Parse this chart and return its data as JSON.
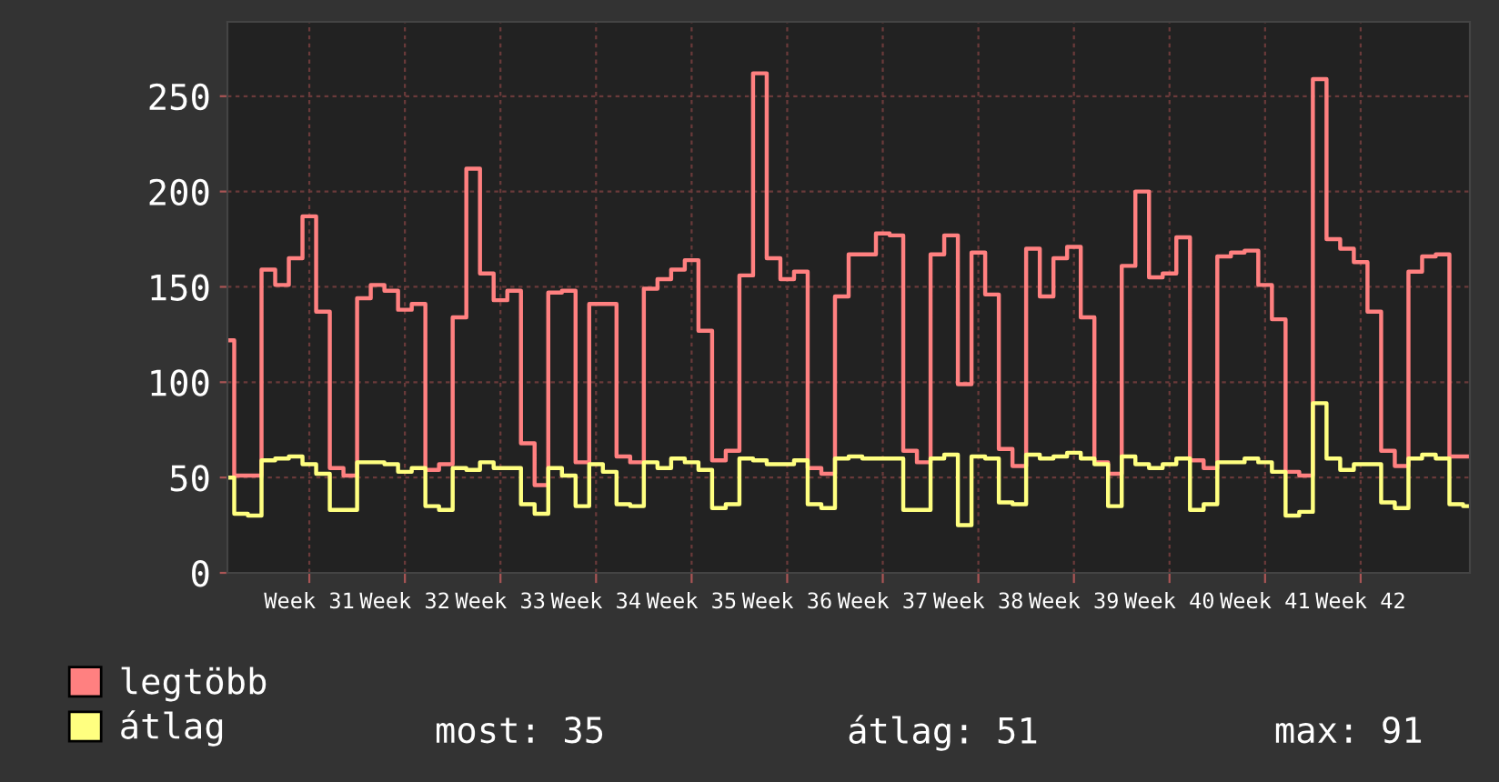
{
  "chart_data": {
    "type": "step",
    "categories": [
      null,
      null,
      null,
      null,
      null,
      null,
      "Week 31",
      null,
      null,
      null,
      null,
      null,
      null,
      "Week 32",
      null,
      null,
      null,
      null,
      null,
      null,
      "Week 33",
      null,
      null,
      null,
      null,
      null,
      null,
      "Week 34",
      null,
      null,
      null,
      null,
      null,
      null,
      "Week 35",
      null,
      null,
      null,
      null,
      null,
      null,
      "Week 36",
      null,
      null,
      null,
      null,
      null,
      null,
      "Week 37",
      null,
      null,
      null,
      null,
      null,
      null,
      "Week 38",
      null,
      null,
      null,
      null,
      null,
      null,
      "Week 39",
      null,
      null,
      null,
      null,
      null,
      null,
      "Week 40",
      null,
      null,
      null,
      null,
      null,
      null,
      "Week 41",
      null,
      null,
      null,
      null,
      null,
      null,
      "Week 42",
      null,
      null,
      null,
      null,
      null,
      null,
      null,
      null
    ],
    "series": [
      {
        "name": "legtöbb",
        "color": "#ff8080",
        "values": [
          122,
          51,
          51,
          159,
          151,
          165,
          187,
          137,
          55,
          51,
          144,
          151,
          148,
          138,
          141,
          54,
          57,
          134,
          212,
          157,
          143,
          148,
          68,
          46,
          147,
          148,
          58,
          141,
          141,
          61,
          58,
          149,
          154,
          159,
          164,
          127,
          59,
          64,
          156,
          262,
          165,
          154,
          158,
          55,
          52,
          145,
          167,
          167,
          178,
          177,
          64,
          58,
          167,
          177,
          99,
          168,
          146,
          65,
          56,
          170,
          145,
          165,
          171,
          134,
          58,
          52,
          161,
          200,
          155,
          157,
          176,
          59,
          55,
          166,
          168,
          169,
          151,
          133,
          53,
          51,
          259,
          175,
          170,
          163,
          137,
          64,
          56,
          158,
          166,
          167,
          61,
          61
        ]
      },
      {
        "name": "átlag",
        "color": "#ffff80",
        "values": [
          50,
          31,
          30,
          59,
          60,
          61,
          57,
          52,
          33,
          33,
          58,
          58,
          57,
          53,
          55,
          35,
          33,
          55,
          54,
          58,
          55,
          55,
          36,
          31,
          55,
          51,
          35,
          57,
          53,
          36,
          35,
          58,
          55,
          60,
          58,
          54,
          34,
          36,
          60,
          59,
          57,
          57,
          59,
          36,
          34,
          60,
          61,
          60,
          60,
          60,
          33,
          33,
          60,
          62,
          25,
          61,
          60,
          37,
          36,
          62,
          60,
          61,
          63,
          60,
          57,
          35,
          61,
          57,
          55,
          57,
          60,
          33,
          36,
          58,
          58,
          60,
          58,
          53,
          30,
          32,
          89,
          60,
          54,
          57,
          57,
          37,
          34,
          60,
          62,
          60,
          36,
          35
        ]
      }
    ],
    "ylim": [
      0,
      289
    ],
    "yticks": [
      0,
      50,
      100,
      150,
      200,
      250
    ],
    "grid": true,
    "legend": "bottom left",
    "annotations": [
      "most: 35",
      "átlag: 51",
      "max: 91"
    ]
  }
}
